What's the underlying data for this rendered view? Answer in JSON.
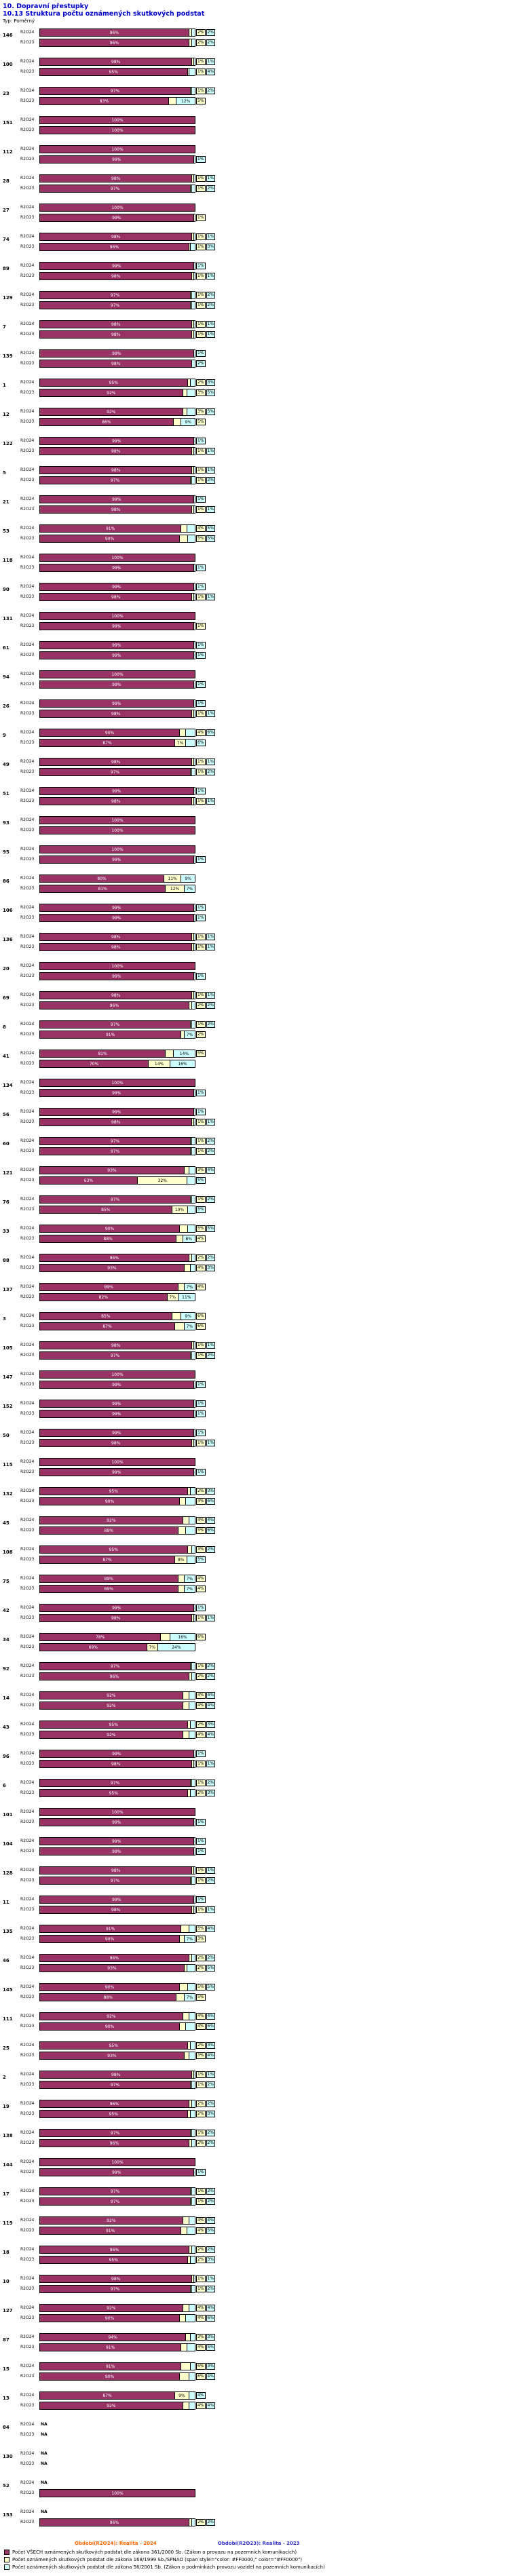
{
  "header": {
    "title": "10. Dopravní přestupky",
    "subtitle": "10.13 Struktura počtu oznámených skutkových podstat",
    "type_label": "Typ: Poměrný"
  },
  "chart_data": {
    "type": "bar",
    "orientation": "horizontal",
    "stacked": true,
    "unit": "%",
    "x_max": 100,
    "na_label": "NA",
    "title": "10.13 Struktura počtu oznámených skutkových podstat",
    "series_labels": [
      "R2O24",
      "R2O23"
    ],
    "segments": [
      {
        "name": "zakon-361-2000",
        "color": "#993366",
        "label_color": "#FFFFFF"
      },
      {
        "name": "zakon-168-1999",
        "color": "#FFFFCC",
        "label_color": "#000000"
      },
      {
        "name": "zakon-56-2001",
        "color": "#CCFFFF",
        "label_color": "#000000"
      }
    ],
    "rows": [
      {
        "code": "146",
        "y2024": [
          96,
          2,
          2
        ],
        "y2023": [
          96,
          2,
          2
        ]
      },
      {
        "code": "100",
        "y2024": [
          98,
          1,
          1
        ],
        "y2023": [
          95,
          1,
          4
        ]
      },
      {
        "code": "23",
        "y2024": [
          97,
          1,
          2
        ],
        "y2023": [
          83,
          5,
          12
        ]
      },
      {
        "code": "151",
        "y2024": [
          100,
          0,
          0
        ],
        "y2023": [
          100,
          0,
          0
        ]
      },
      {
        "code": "112",
        "y2024": [
          100,
          0,
          0
        ],
        "y2023": [
          99,
          0,
          1
        ]
      },
      {
        "code": "28",
        "y2024": [
          98,
          1,
          1
        ],
        "y2023": [
          97,
          1,
          2
        ]
      },
      {
        "code": "27",
        "y2024": [
          100,
          0,
          0
        ],
        "y2023": [
          99,
          1,
          0
        ]
      },
      {
        "code": "74",
        "y2024": [
          98,
          1,
          1
        ],
        "y2023": [
          96,
          1,
          3
        ]
      },
      {
        "code": "89",
        "y2024": [
          99,
          0,
          1
        ],
        "y2023": [
          98,
          1,
          1
        ]
      },
      {
        "code": "129",
        "y2024": [
          97,
          1,
          2
        ],
        "y2023": [
          97,
          1,
          2
        ]
      },
      {
        "code": "7",
        "y2024": [
          98,
          1,
          1
        ],
        "y2023": [
          98,
          1,
          1
        ]
      },
      {
        "code": "139",
        "y2024": [
          99,
          0,
          1
        ],
        "y2023": [
          98,
          0,
          2
        ]
      },
      {
        "code": "1",
        "y2024": [
          95,
          2,
          3
        ],
        "y2023": [
          92,
          3,
          5
        ]
      },
      {
        "code": "12",
        "y2024": [
          92,
          3,
          5
        ],
        "y2023": [
          86,
          5,
          9
        ]
      },
      {
        "code": "122",
        "y2024": [
          99,
          0,
          1
        ],
        "y2023": [
          98,
          1,
          1
        ]
      },
      {
        "code": "5",
        "y2024": [
          98,
          1,
          1
        ],
        "y2023": [
          97,
          1,
          2
        ]
      },
      {
        "code": "21",
        "y2024": [
          99,
          0,
          1
        ],
        "y2023": [
          98,
          1,
          1
        ]
      },
      {
        "code": "53",
        "y2024": [
          91,
          4,
          5
        ],
        "y2023": [
          90,
          5,
          5
        ]
      },
      {
        "code": "118",
        "y2024": [
          100,
          0,
          0
        ],
        "y2023": [
          99,
          0,
          1
        ]
      },
      {
        "code": "90",
        "y2024": [
          99,
          0,
          1
        ],
        "y2023": [
          98,
          1,
          1
        ]
      },
      {
        "code": "131",
        "y2024": [
          100,
          0,
          0
        ],
        "y2023": [
          99,
          1,
          0
        ]
      },
      {
        "code": "61",
        "y2024": [
          99,
          0,
          1
        ],
        "y2023": [
          99,
          0,
          1
        ]
      },
      {
        "code": "94",
        "y2024": [
          100,
          0,
          0
        ],
        "y2023": [
          99,
          0,
          1
        ]
      },
      {
        "code": "26",
        "y2024": [
          99,
          0,
          1
        ],
        "y2023": [
          98,
          1,
          1
        ]
      },
      {
        "code": "9",
        "y2024": [
          90,
          4,
          6
        ],
        "y2023": [
          87,
          7,
          6
        ]
      },
      {
        "code": "49",
        "y2024": [
          98,
          1,
          1
        ],
        "y2023": [
          97,
          1,
          2
        ]
      },
      {
        "code": "51",
        "y2024": [
          99,
          0,
          1
        ],
        "y2023": [
          98,
          1,
          1
        ]
      },
      {
        "code": "93",
        "y2024": [
          100,
          0,
          0
        ],
        "y2023": [
          100,
          0,
          0
        ]
      },
      {
        "code": "95",
        "y2024": [
          100,
          0,
          0
        ],
        "y2023": [
          99,
          0,
          1
        ]
      },
      {
        "code": "86",
        "y2024": [
          80,
          11,
          9
        ],
        "y2023": [
          81,
          12,
          7
        ]
      },
      {
        "code": "106",
        "y2024": [
          99,
          0,
          1
        ],
        "y2023": [
          99,
          0,
          1
        ]
      },
      {
        "code": "136",
        "y2024": [
          98,
          1,
          1
        ],
        "y2023": [
          98,
          1,
          1
        ]
      },
      {
        "code": "20",
        "y2024": [
          100,
          0,
          0
        ],
        "y2023": [
          99,
          0,
          1
        ]
      },
      {
        "code": "69",
        "y2024": [
          98,
          1,
          1
        ],
        "y2023": [
          96,
          2,
          2
        ]
      },
      {
        "code": "8",
        "y2024": [
          97,
          1,
          2
        ],
        "y2023": [
          91,
          2,
          7
        ]
      },
      {
        "code": "41",
        "y2024": [
          81,
          5,
          14
        ],
        "y2023": [
          70,
          14,
          16
        ]
      },
      {
        "code": "134",
        "y2024": [
          100,
          0,
          0
        ],
        "y2023": [
          99,
          0,
          1
        ]
      },
      {
        "code": "56",
        "y2024": [
          99,
          0,
          1
        ],
        "y2023": [
          98,
          1,
          1
        ]
      },
      {
        "code": "60",
        "y2024": [
          97,
          1,
          2
        ],
        "y2023": [
          97,
          1,
          2
        ]
      },
      {
        "code": "121",
        "y2024": [
          93,
          3,
          4
        ],
        "y2023": [
          63,
          32,
          5
        ]
      },
      {
        "code": "76",
        "y2024": [
          97,
          1,
          2
        ],
        "y2023": [
          85,
          10,
          5
        ]
      },
      {
        "code": "33",
        "y2024": [
          90,
          5,
          5
        ],
        "y2023": [
          88,
          4,
          8
        ]
      },
      {
        "code": "88",
        "y2024": [
          96,
          2,
          2
        ],
        "y2023": [
          93,
          4,
          3
        ]
      },
      {
        "code": "137",
        "y2024": [
          89,
          4,
          7
        ],
        "y2023": [
          82,
          7,
          11
        ]
      },
      {
        "code": "3",
        "y2024": [
          85,
          6,
          9
        ],
        "y2023": [
          87,
          6,
          7
        ]
      },
      {
        "code": "105",
        "y2024": [
          98,
          1,
          1
        ],
        "y2023": [
          97,
          1,
          2
        ]
      },
      {
        "code": "147",
        "y2024": [
          100,
          0,
          0
        ],
        "y2023": [
          99,
          0,
          1
        ]
      },
      {
        "code": "152",
        "y2024": [
          99,
          0,
          1
        ],
        "y2023": [
          99,
          0,
          1
        ]
      },
      {
        "code": "50",
        "y2024": [
          99,
          0,
          1
        ],
        "y2023": [
          98,
          1,
          1
        ]
      },
      {
        "code": "115",
        "y2024": [
          100,
          0,
          0
        ],
        "y2023": [
          99,
          0,
          1
        ]
      },
      {
        "code": "132",
        "y2024": [
          95,
          2,
          3
        ],
        "y2023": [
          90,
          4,
          6
        ]
      },
      {
        "code": "45",
        "y2024": [
          92,
          4,
          4
        ],
        "y2023": [
          89,
          5,
          6
        ]
      },
      {
        "code": "108",
        "y2024": [
          95,
          3,
          2
        ],
        "y2023": [
          87,
          8,
          5
        ]
      },
      {
        "code": "75",
        "y2024": [
          89,
          4,
          7
        ],
        "y2023": [
          89,
          4,
          7
        ]
      },
      {
        "code": "42",
        "y2024": [
          99,
          0,
          1
        ],
        "y2023": [
          98,
          1,
          1
        ]
      },
      {
        "code": "34",
        "y2024": [
          78,
          6,
          16
        ],
        "y2023": [
          69,
          7,
          24
        ]
      },
      {
        "code": "92",
        "y2024": [
          97,
          1,
          2
        ],
        "y2023": [
          96,
          2,
          2
        ]
      },
      {
        "code": "14",
        "y2024": [
          92,
          4,
          4
        ],
        "y2023": [
          92,
          4,
          4
        ]
      },
      {
        "code": "43",
        "y2024": [
          95,
          2,
          3
        ],
        "y2023": [
          92,
          4,
          4
        ]
      },
      {
        "code": "96",
        "y2024": [
          99,
          0,
          1
        ],
        "y2023": [
          98,
          1,
          1
        ]
      },
      {
        "code": "6",
        "y2024": [
          97,
          1,
          2
        ],
        "y2023": [
          95,
          2,
          3
        ]
      },
      {
        "code": "101",
        "y2024": [
          100,
          0,
          0
        ],
        "y2023": [
          99,
          0,
          1
        ]
      },
      {
        "code": "104",
        "y2024": [
          99,
          0,
          1
        ],
        "y2023": [
          99,
          0,
          1
        ]
      },
      {
        "code": "128",
        "y2024": [
          98,
          1,
          1
        ],
        "y2023": [
          97,
          1,
          2
        ]
      },
      {
        "code": "11",
        "y2024": [
          99,
          0,
          1
        ],
        "y2023": [
          98,
          1,
          1
        ]
      },
      {
        "code": "135",
        "y2024": [
          91,
          5,
          4
        ],
        "y2023": [
          90,
          3,
          7
        ]
      },
      {
        "code": "46",
        "y2024": [
          96,
          2,
          2
        ],
        "y2023": [
          93,
          2,
          5
        ]
      },
      {
        "code": "145",
        "y2024": [
          90,
          5,
          5
        ],
        "y2023": [
          88,
          5,
          7
        ]
      },
      {
        "code": "111",
        "y2024": [
          92,
          4,
          4
        ],
        "y2023": [
          90,
          4,
          6
        ]
      },
      {
        "code": "25",
        "y2024": [
          95,
          2,
          3
        ],
        "y2023": [
          93,
          3,
          4
        ]
      },
      {
        "code": "2",
        "y2024": [
          98,
          1,
          1
        ],
        "y2023": [
          97,
          1,
          2
        ]
      },
      {
        "code": "19",
        "y2024": [
          96,
          2,
          2
        ],
        "y2023": [
          95,
          2,
          3
        ]
      },
      {
        "code": "138",
        "y2024": [
          97,
          1,
          2
        ],
        "y2023": [
          96,
          2,
          2
        ]
      },
      {
        "code": "144",
        "y2024": [
          100,
          0,
          0
        ],
        "y2023": [
          99,
          0,
          1
        ]
      },
      {
        "code": "17",
        "y2024": [
          97,
          1,
          2
        ],
        "y2023": [
          97,
          1,
          2
        ]
      },
      {
        "code": "119",
        "y2024": [
          92,
          4,
          4
        ],
        "y2023": [
          91,
          4,
          5
        ]
      },
      {
        "code": "18",
        "y2024": [
          96,
          2,
          2
        ],
        "y2023": [
          95,
          2,
          3
        ]
      },
      {
        "code": "10",
        "y2024": [
          98,
          1,
          1
        ],
        "y2023": [
          97,
          1,
          2
        ]
      },
      {
        "code": "127",
        "y2024": [
          92,
          4,
          4
        ],
        "y2023": [
          90,
          4,
          6
        ]
      },
      {
        "code": "87",
        "y2024": [
          94,
          3,
          3
        ],
        "y2023": [
          91,
          4,
          5
        ]
      },
      {
        "code": "15",
        "y2024": [
          91,
          6,
          3
        ],
        "y2023": [
          90,
          6,
          4
        ]
      },
      {
        "code": "13",
        "y2024": [
          87,
          9,
          4
        ],
        "y2023": [
          92,
          4,
          4
        ]
      },
      {
        "code": "84",
        "y2024": null,
        "y2023": null
      },
      {
        "code": "130",
        "y2024": null,
        "y2023": null
      },
      {
        "code": "52",
        "y2024": null,
        "y2023": [
          100,
          0,
          0
        ]
      },
      {
        "code": "153",
        "y2024": null,
        "y2023": [
          96,
          2,
          2
        ]
      }
    ]
  },
  "footer": {
    "periods": [
      {
        "label": "Období(R2O24): Realita - 2024",
        "color": "#FF6600"
      },
      {
        "label": "Období(R2O23): Realita - 2023",
        "color": "#3333CC"
      }
    ],
    "legend": [
      {
        "color": "#993366",
        "label": "Počet VŠECH oznámených skutkových podstat dle zákona 361/2000 Sb. (Zákon o provozu na pozemních komunikacích)"
      },
      {
        "color": "#FFFFCC",
        "label": "Počet oznámených skutkových podstat dle zákona 168/1999 Sb./SPNAO (span style=\"color: #FF0000;\" color=\"#FF0000\")"
      },
      {
        "color": "#CCFFFF",
        "label": "Počet oznámených skutkových podstat dle zákona 56/2001 Sb. (Zákon o podmínkách provozu vozidel na pozemních komunikacích)"
      }
    ]
  }
}
